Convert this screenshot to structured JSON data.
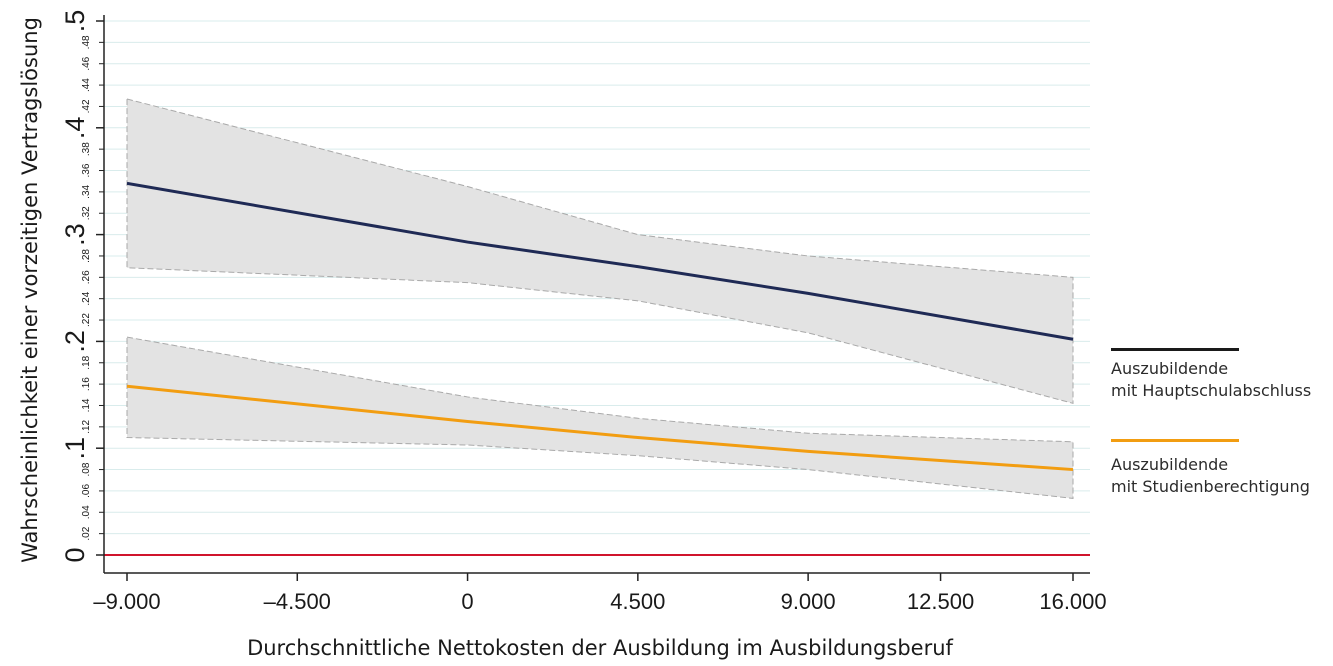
{
  "chart_data": {
    "type": "line",
    "title": "",
    "xlabel": "Durchschnittliche Nettokosten der Ausbildung im Ausbildungsberuf",
    "ylabel": "Wahrscheinlichkeit einer vorzeitigen Vertragslösung",
    "xlim": [
      -9000,
      16000
    ],
    "ylim": [
      0,
      0.5
    ],
    "x_ticks": [
      -9000,
      -4500,
      0,
      4500,
      9000,
      12500,
      16000
    ],
    "x_tick_labels": [
      "–9.000",
      "–4.500",
      "0",
      "4.500",
      "9.000",
      "12.500",
      "16.000"
    ],
    "y_major_ticks": [
      0,
      0.1,
      0.2,
      0.3,
      0.4,
      0.5
    ],
    "y_major_labels": [
      "0",
      ".1",
      ".2",
      ".3",
      ".4",
      ".5"
    ],
    "y_minor_ticks": [
      0.02,
      0.04,
      0.06,
      0.08,
      0.12,
      0.14,
      0.16,
      0.18,
      0.22,
      0.24,
      0.26,
      0.28,
      0.32,
      0.34,
      0.36,
      0.38,
      0.42,
      0.44,
      0.46,
      0.48
    ],
    "y_minor_labels": [
      ".02",
      ".04",
      ".06",
      ".08",
      ".12",
      ".14",
      ".16",
      ".18",
      ".22",
      ".24",
      ".26",
      ".28",
      ".32",
      ".34",
      ".36",
      ".38",
      ".42",
      ".44",
      ".46",
      ".48"
    ],
    "grid": true,
    "legend_position": "right",
    "reference_line": {
      "y": 0,
      "color": "#d0142c"
    },
    "series": [
      {
        "name": "Auszubildende\nmit Hauptschulabschluss",
        "color": "#1f2a55",
        "x": [
          -9000,
          0,
          4500,
          9000,
          16000
        ],
        "y": [
          0.348,
          0.293,
          0.27,
          0.245,
          0.202
        ],
        "ci_upper": [
          0.427,
          0.345,
          0.3,
          0.28,
          0.26
        ],
        "ci_lower": [
          0.269,
          0.255,
          0.238,
          0.208,
          0.142
        ]
      },
      {
        "name": "Auszubildende\nmit Studienberechtigung",
        "color": "#f29d11",
        "x": [
          -9000,
          0,
          4500,
          9000,
          16000
        ],
        "y": [
          0.158,
          0.125,
          0.11,
          0.097,
          0.08
        ],
        "ci_upper": [
          0.204,
          0.148,
          0.128,
          0.114,
          0.106
        ],
        "ci_lower": [
          0.11,
          0.103,
          0.093,
          0.08,
          0.053
        ]
      }
    ]
  }
}
